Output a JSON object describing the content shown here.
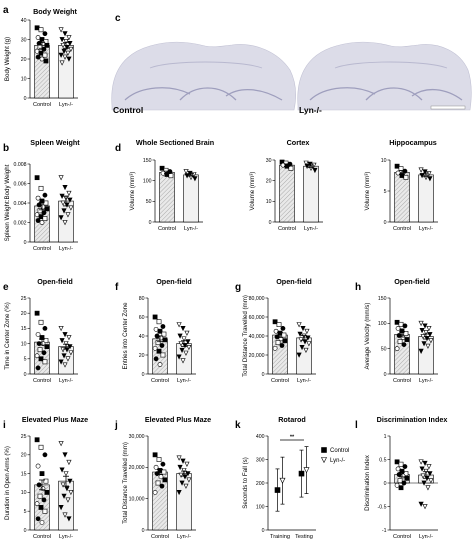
{
  "image_panel": {
    "letter": "c",
    "left_label": "Control",
    "right_label": "Lyn-/-"
  },
  "chart_data": [
    {
      "id": "a",
      "letter": "a",
      "type": "bar",
      "title": "Body Weight",
      "ylabel": "Body Weight (g)",
      "categories": [
        "Control",
        "Lyn-/-"
      ],
      "ylim": [
        0,
        40
      ],
      "yticks": [
        0,
        10,
        20,
        30,
        40
      ],
      "values": [
        27,
        27
      ],
      "sem": [
        1.5,
        1.5
      ],
      "points": [
        [
          36,
          35,
          33,
          31,
          30,
          29,
          28,
          28,
          27,
          26,
          25,
          24,
          23,
          22,
          21,
          20,
          19
        ],
        [
          35,
          33,
          31,
          30,
          29,
          28,
          27,
          26,
          25,
          24,
          23,
          22,
          21,
          20,
          18
        ]
      ]
    },
    {
      "id": "b",
      "letter": "b",
      "type": "bar",
      "title": "Spleen Weight",
      "ylabel": "Spleen Weight:Body Weight",
      "categories": [
        "Control",
        "Lyn-/-"
      ],
      "ylim": [
        0,
        0.008
      ],
      "yticks": [
        0,
        0.002,
        0.004,
        0.006,
        0.008
      ],
      "values": [
        0.0037,
        0.0042
      ],
      "sem": [
        0.0004,
        0.0005
      ],
      "points": [
        [
          0.0066,
          0.0055,
          0.0048,
          0.0045,
          0.0042,
          0.004,
          0.0038,
          0.0036,
          0.0034,
          0.0032,
          0.003,
          0.0028,
          0.0026,
          0.0024,
          0.0022,
          0.002
        ],
        [
          0.0066,
          0.0056,
          0.005,
          0.0047,
          0.0045,
          0.0043,
          0.004,
          0.0038,
          0.0035,
          0.0032,
          0.0028,
          0.0025,
          0.002
        ]
      ]
    },
    {
      "id": "d1",
      "letter": "d",
      "type": "bar",
      "title": "Whole Sectioned Brain",
      "ylabel": "Volume (mm³)",
      "categories": [
        "Control",
        "Lyn-/-"
      ],
      "ylim": [
        0,
        150
      ],
      "yticks": [
        0,
        50,
        100,
        150
      ],
      "values": [
        120,
        114
      ],
      "sem": [
        3,
        3
      ],
      "points": [
        [
          130,
          125,
          122,
          118,
          115,
          112
        ],
        [
          122,
          118,
          115,
          112,
          108,
          105
        ]
      ]
    },
    {
      "id": "d2",
      "letter": "",
      "type": "bar",
      "title": "Cortex",
      "ylabel": "Volume (mm³)",
      "categories": [
        "Control",
        "Lyn-/-"
      ],
      "ylim": [
        0,
        30
      ],
      "yticks": [
        0,
        10,
        20,
        30
      ],
      "values": [
        27.5,
        27
      ],
      "sem": [
        0.6,
        0.6
      ],
      "points": [
        [
          29,
          28.5,
          28,
          27.5,
          27,
          26
        ],
        [
          28.5,
          28,
          27.5,
          27,
          26,
          25
        ]
      ]
    },
    {
      "id": "d3",
      "letter": "",
      "type": "bar",
      "title": "Hippocampus",
      "ylabel": "Volume (mm³)",
      "categories": [
        "Control",
        "Lyn-/-"
      ],
      "ylim": [
        0,
        10
      ],
      "yticks": [
        0,
        5,
        10
      ],
      "values": [
        8,
        7.6
      ],
      "sem": [
        0.3,
        0.3
      ],
      "points": [
        [
          9,
          8.6,
          8.2,
          7.9,
          7.5,
          7.2
        ],
        [
          8.4,
          8.1,
          7.8,
          7.5,
          7.2,
          7
        ]
      ]
    },
    {
      "id": "e",
      "letter": "e",
      "type": "bar",
      "title": "Open-field",
      "ylabel": "Time in Center Zone (%)",
      "categories": [
        "Control",
        "Lyn-/-"
      ],
      "ylim": [
        0,
        25
      ],
      "yticks": [
        0,
        5,
        10,
        15,
        20,
        25
      ],
      "values": [
        10.5,
        9
      ],
      "sem": [
        1,
        0.8
      ],
      "points": [
        [
          20,
          17,
          15,
          13,
          12,
          11,
          10,
          10,
          9,
          8,
          7,
          6,
          5,
          4,
          2
        ],
        [
          15,
          13,
          12,
          11,
          10,
          9,
          8,
          8,
          7,
          6,
          5,
          4,
          3
        ]
      ]
    },
    {
      "id": "f",
      "letter": "f",
      "type": "bar",
      "title": "Open-field",
      "ylabel": "Entries into Center Zone",
      "categories": [
        "Control",
        "Lyn-/-"
      ],
      "ylim": [
        0,
        80
      ],
      "yticks": [
        0,
        20,
        40,
        60,
        80
      ],
      "values": [
        37,
        32
      ],
      "sem": [
        3,
        3
      ],
      "points": [
        [
          60,
          55,
          50,
          47,
          45,
          42,
          40,
          38,
          36,
          33,
          30,
          27,
          24,
          20,
          16,
          10
        ],
        [
          52,
          48,
          43,
          40,
          37,
          34,
          32,
          30,
          28,
          25,
          22,
          18,
          14
        ]
      ]
    },
    {
      "id": "g",
      "letter": "g",
      "type": "bar",
      "title": "Open-field",
      "ylabel": "Total Distance Travelled (mm)",
      "categories": [
        "Control",
        "Lyn-/-"
      ],
      "ylim": [
        0,
        80000
      ],
      "yticks": [
        0,
        20000,
        40000,
        60000,
        80000
      ],
      "values": [
        41000,
        38000
      ],
      "sem": [
        2500,
        2500
      ],
      "points": [
        [
          55000,
          52000,
          48000,
          45000,
          43000,
          41000,
          39000,
          37000,
          35000,
          33000,
          30000,
          27000
        ],
        [
          52000,
          48000,
          45000,
          42000,
          40000,
          38000,
          36000,
          34000,
          32000,
          28000,
          25000,
          20000
        ]
      ]
    },
    {
      "id": "h",
      "letter": "h",
      "type": "bar",
      "title": "Open-field",
      "ylabel": "Average Velocity (mm/s)",
      "categories": [
        "Control",
        "Lyn-/-"
      ],
      "ylim": [
        0,
        150
      ],
      "yticks": [
        0,
        50,
        100,
        150
      ],
      "values": [
        78,
        74
      ],
      "sem": [
        5,
        5
      ],
      "points": [
        [
          102,
          98,
          95,
          90,
          85,
          80,
          76,
          72,
          68,
          64,
          58,
          50
        ],
        [
          100,
          95,
          90,
          86,
          82,
          78,
          74,
          70,
          66,
          60,
          55,
          45
        ]
      ]
    },
    {
      "id": "i",
      "letter": "i",
      "type": "bar",
      "title": "Elevated Plus Maze",
      "ylabel": "Duration in Open Arms (%)",
      "categories": [
        "Control",
        "Lyn-/-"
      ],
      "ylim": [
        0,
        25
      ],
      "yticks": [
        0,
        5,
        10,
        15,
        20,
        25
      ],
      "values": [
        12,
        13
      ],
      "sem": [
        1.3,
        1.3
      ],
      "points": [
        [
          24,
          22,
          20,
          17,
          15,
          13,
          12,
          11,
          10,
          9,
          8,
          7,
          6,
          5,
          3,
          2
        ],
        [
          23,
          20,
          18,
          16,
          15,
          13,
          12,
          11,
          10,
          9,
          8,
          6,
          4,
          3
        ]
      ]
    },
    {
      "id": "j",
      "letter": "j",
      "type": "bar",
      "title": "Elevated Plus Maze",
      "ylabel": "Total Distance Travelled (mm)",
      "categories": [
        "Control",
        "Lyn-/-"
      ],
      "ylim": [
        0,
        30000
      ],
      "yticks": [
        0,
        10000,
        20000,
        30000
      ],
      "values": [
        18500,
        18000
      ],
      "sem": [
        800,
        800
      ],
      "points": [
        [
          24000,
          22500,
          21000,
          20000,
          19000,
          18500,
          18000,
          17000,
          16000,
          15000,
          14000,
          12000
        ],
        [
          23000,
          22000,
          21000,
          20000,
          19000,
          18000,
          17500,
          17000,
          16000,
          15000,
          14000,
          12000
        ]
      ]
    },
    {
      "id": "k",
      "letter": "k",
      "type": "line",
      "title": "Rotarod",
      "ylabel": "Seconds to Fall (s)",
      "categories": [
        "Training",
        "Testing"
      ],
      "ylim": [
        0,
        400
      ],
      "yticks": [
        0,
        100,
        200,
        300,
        400
      ],
      "series": [
        {
          "name": "Control",
          "values": [
            170,
            240
          ],
          "err": [
            90,
            100
          ]
        },
        {
          "name": "Lyn-/-",
          "values": [
            210,
            255
          ],
          "err": [
            100,
            100
          ]
        }
      ],
      "annotation": "**"
    },
    {
      "id": "l",
      "letter": "l",
      "type": "bar",
      "title": "Discrimination Index",
      "ylabel": "Discrimination Index",
      "categories": [
        "Control",
        "Lyn-/-"
      ],
      "ylim": [
        -1,
        1
      ],
      "yticks": [
        -1,
        -0.5,
        0,
        0.5,
        1
      ],
      "values": [
        0.18,
        0.17
      ],
      "sem": [
        0.05,
        0.07
      ],
      "points": [
        [
          0.45,
          0.4,
          0.35,
          0.3,
          0.25,
          0.2,
          0.18,
          0.15,
          0.1,
          0.05,
          0,
          -0.05,
          -0.1
        ],
        [
          0.45,
          0.42,
          0.35,
          0.3,
          0.25,
          0.2,
          0.15,
          0.1,
          0.05,
          0,
          -0.1,
          -0.45,
          -0.5
        ]
      ]
    }
  ]
}
